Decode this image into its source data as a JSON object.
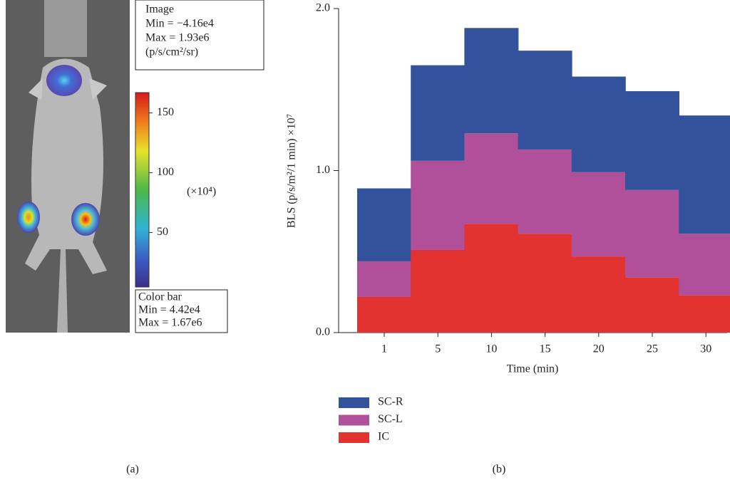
{
  "panel_a": {
    "image_box": [
      "Image",
      "Min = −4.16e4",
      "Max = 1.93e6",
      "(p/s/cm²/sr)"
    ],
    "colorbar": {
      "lim": [
        4.42,
        167
      ],
      "ticks": [
        50,
        100,
        150
      ],
      "unit_label": "(×10⁴)"
    },
    "colorbar_box": [
      "Color bar",
      "Min = 4.42e4",
      "Max = 1.67e6"
    ],
    "label": "(a)"
  },
  "chart_data": {
    "type": "stacked_bar",
    "x_label": "Time (min)",
    "y_label": "BLS (p/s/m²/1 min) ×10⁷",
    "categories": [
      "1",
      "5",
      "10",
      "15",
      "20",
      "25",
      "30"
    ],
    "series": [
      {
        "name": "IC",
        "color": "#e23331",
        "values": [
          0.22,
          0.51,
          0.67,
          0.61,
          0.47,
          0.34,
          0.23
        ]
      },
      {
        "name": "SC-L",
        "color": "#b0509b",
        "values": [
          0.22,
          0.55,
          0.56,
          0.52,
          0.52,
          0.54,
          0.38
        ]
      },
      {
        "name": "SC-R",
        "color": "#34519c",
        "values": [
          0.45,
          0.59,
          0.65,
          0.61,
          0.59,
          0.61,
          0.73
        ]
      }
    ],
    "ylim": [
      0,
      2
    ],
    "yticks": [
      {
        "value": 0,
        "label": "0.0"
      },
      {
        "value": 1,
        "label": "1.0"
      },
      {
        "value": 2,
        "label": "2.0"
      }
    ],
    "label": "(b)"
  }
}
